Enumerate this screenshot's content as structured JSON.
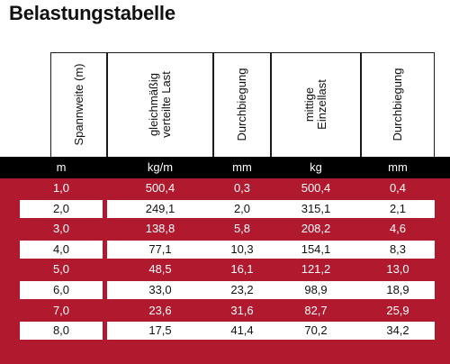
{
  "title": "Belastungstabelle",
  "colors": {
    "accent_red": "#b0192e",
    "unit_row_bg": "#000000",
    "row_light": "#ffffff"
  },
  "table": {
    "headers": [
      {
        "line1": "Spannweite (m)",
        "line2": ""
      },
      {
        "line1": "gleichmäßig",
        "line2": "verteilte Last"
      },
      {
        "line1": "Durchbiegung",
        "line2": ""
      },
      {
        "line1": "mittige",
        "line2": "Einzellast"
      },
      {
        "line1": "Durchbiegung",
        "line2": ""
      }
    ],
    "units": [
      "m",
      "kg/m",
      "mm",
      "kg",
      "mm"
    ],
    "rows": [
      [
        "1,0",
        "500,4",
        "0,3",
        "500,4",
        "0,4"
      ],
      [
        "2,0",
        "249,1",
        "2,0",
        "315,1",
        "2,1"
      ],
      [
        "3,0",
        "138,8",
        "5,8",
        "208,2",
        "4,6"
      ],
      [
        "4,0",
        "77,1",
        "10,3",
        "154,1",
        "8,3"
      ],
      [
        "5,0",
        "48,5",
        "16,1",
        "121,2",
        "13,0"
      ],
      [
        "6,0",
        "33,0",
        "23,2",
        "98,9",
        "18,9"
      ],
      [
        "7,0",
        "23,6",
        "31,6",
        "82,7",
        "25,9"
      ],
      [
        "8,0",
        "17,5",
        "41,4",
        "70,2",
        "34,2"
      ]
    ]
  }
}
